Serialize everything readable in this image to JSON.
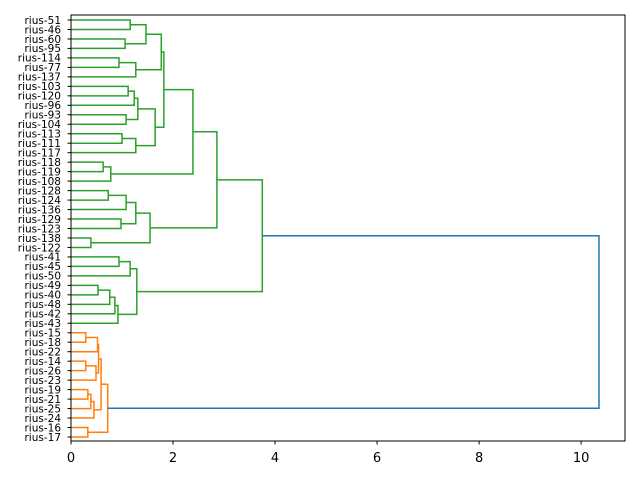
{
  "chart_data": {
    "type": "dendrogram",
    "orientation": "right",
    "title": "",
    "xlabel": "",
    "ylabel": "",
    "xlim": [
      0,
      10.86
    ],
    "xticks": [
      0,
      2,
      4,
      6,
      8,
      10
    ],
    "xtick_labels": [
      "0",
      "2",
      "4",
      "6",
      "8",
      "10"
    ],
    "grid": false,
    "colors": {
      "above_threshold": "#1f77b4",
      "cluster_1": "#2ca02c",
      "cluster_2": "#ff7f0e"
    },
    "leaves": [
      "rius-51",
      "rius-46",
      "rius-60",
      "rius-95",
      "rius-114",
      "rius-77",
      "rius-137",
      "rius-103",
      "rius-120",
      "rius-96",
      "rius-93",
      "rius-104",
      "rius-113",
      "rius-111",
      "rius-117",
      "rius-118",
      "rius-119",
      "rius-108",
      "rius-128",
      "rius-124",
      "rius-136",
      "rius-129",
      "rius-123",
      "rius-138",
      "rius-122",
      "rius-41",
      "rius-45",
      "rius-50",
      "rius-49",
      "rius-40",
      "rius-48",
      "rius-42",
      "rius-43",
      "rius-15",
      "rius-18",
      "rius-22",
      "rius-14",
      "rius-26",
      "rius-23",
      "rius-19",
      "rius-21",
      "rius-25",
      "rius-24",
      "rius-16",
      "rius-17"
    ],
    "tree": {
      "h": 10.35,
      "color": "#1f77b4",
      "c": [
        {
          "h": 3.75,
          "color": "#2ca02c",
          "c": [
            {
              "h": 2.86,
              "c": [
                {
                  "h": 2.39,
                  "c": [
                    {
                      "h": 1.82,
                      "c": [
                        {
                          "h": 1.77,
                          "c": [
                            {
                              "h": 1.47,
                              "c": [
                                {
                                  "h": 1.16,
                                  "c": [
                                    "rius-51",
                                    "rius-46"
                                  ]
                                },
                                {
                                  "h": 1.06,
                                  "c": [
                                    "rius-60",
                                    "rius-95"
                                  ]
                                }
                              ]
                            },
                            {
                              "h": 1.27,
                              "c": [
                                {
                                  "h": 0.94,
                                  "c": [
                                    "rius-114",
                                    "rius-77"
                                  ]
                                },
                                "rius-137"
                              ]
                            }
                          ]
                        },
                        {
                          "h": 1.65,
                          "c": [
                            {
                              "h": 1.31,
                              "c": [
                                {
                                  "h": 1.24,
                                  "c": [
                                    {
                                      "h": 1.12,
                                      "c": [
                                        "rius-103",
                                        "rius-120"
                                      ]
                                    },
                                    "rius-96"
                                  ]
                                },
                                {
                                  "h": 1.08,
                                  "c": [
                                    "rius-93",
                                    "rius-104"
                                  ]
                                }
                              ]
                            },
                            {
                              "h": 1.27,
                              "c": [
                                {
                                  "h": 1.0,
                                  "c": [
                                    "rius-113",
                                    "rius-111"
                                  ]
                                },
                                "rius-117"
                              ]
                            }
                          ]
                        }
                      ]
                    },
                    {
                      "h": 0.78,
                      "c": [
                        {
                          "h": 0.63,
                          "c": [
                            "rius-118",
                            "rius-119"
                          ]
                        },
                        "rius-108"
                      ]
                    }
                  ]
                },
                {
                  "h": 1.55,
                  "c": [
                    {
                      "h": 1.27,
                      "c": [
                        {
                          "h": 1.08,
                          "c": [
                            {
                              "h": 0.73,
                              "c": [
                                "rius-128",
                                "rius-124"
                              ]
                            },
                            "rius-136"
                          ]
                        },
                        {
                          "h": 0.98,
                          "c": [
                            "rius-129",
                            "rius-123"
                          ]
                        }
                      ]
                    },
                    {
                      "h": 0.39,
                      "c": [
                        "rius-138",
                        "rius-122"
                      ]
                    }
                  ]
                }
              ]
            },
            {
              "h": 1.29,
              "c": [
                {
                  "h": 1.16,
                  "c": [
                    {
                      "h": 0.94,
                      "c": [
                        "rius-41",
                        "rius-45"
                      ]
                    },
                    "rius-50"
                  ]
                },
                {
                  "h": 0.92,
                  "c": [
                    {
                      "h": 0.86,
                      "c": [
                        {
                          "h": 0.76,
                          "c": [
                            {
                              "h": 0.53,
                              "c": [
                                "rius-49",
                                "rius-40"
                              ]
                            },
                            "rius-48"
                          ]
                        },
                        "rius-42"
                      ]
                    },
                    "rius-43"
                  ]
                }
              ]
            }
          ]
        },
        {
          "h": 0.72,
          "color": "#ff7f0e",
          "c": [
            {
              "h": 0.59,
              "c": [
                {
                  "h": 0.54,
                  "c": [
                    {
                      "h": 0.52,
                      "c": [
                        {
                          "h": 0.29,
                          "c": [
                            "rius-15",
                            "rius-18"
                          ]
                        },
                        "rius-22"
                      ]
                    },
                    {
                      "h": 0.49,
                      "c": [
                        {
                          "h": 0.29,
                          "c": [
                            "rius-14",
                            "rius-26"
                          ]
                        },
                        "rius-23"
                      ]
                    }
                  ]
                },
                {
                  "h": 0.45,
                  "c": [
                    {
                      "h": 0.39,
                      "c": [
                        {
                          "h": 0.33,
                          "c": [
                            "rius-19",
                            "rius-21"
                          ]
                        },
                        "rius-25"
                      ]
                    },
                    "rius-24"
                  ]
                }
              ]
            },
            {
              "h": 0.33,
              "c": [
                "rius-16",
                "rius-17"
              ]
            }
          ]
        }
      ]
    }
  }
}
